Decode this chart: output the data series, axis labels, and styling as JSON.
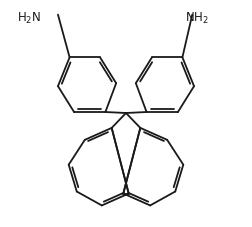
{
  "background": "#ffffff",
  "line_color": "#1a1a1a",
  "line_width": 1.3,
  "dbo": 0.012,
  "font_size": 8.5
}
